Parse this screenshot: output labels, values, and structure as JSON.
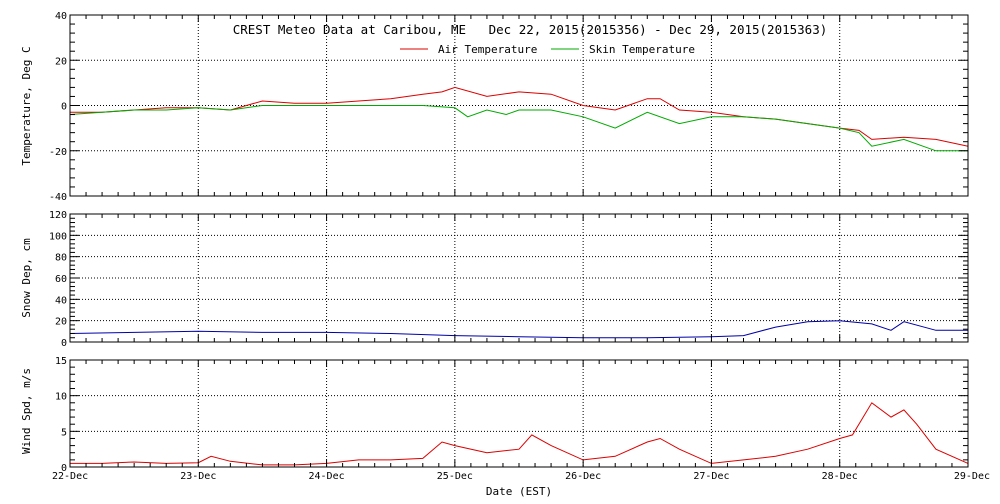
{
  "chart_data": [
    {
      "type": "line",
      "title": "CREST Meteo Data at Caribou, ME   Dec 22, 2015(2015356) - Dec 29, 2015(2015363)",
      "xlabel": "",
      "ylabel": "Temperature, Deg C",
      "ylim": [
        -40,
        40
      ],
      "yticks": [
        -40,
        -20,
        0,
        20,
        40
      ],
      "xlim": [
        0,
        7
      ],
      "grid": true,
      "legend": "top-center",
      "series": [
        {
          "name": "Air Temperature",
          "color": "#dd0000",
          "x": [
            0,
            0.25,
            0.5,
            0.75,
            1.0,
            1.25,
            1.5,
            1.75,
            2.0,
            2.25,
            2.5,
            2.75,
            2.9,
            3.0,
            3.25,
            3.5,
            3.75,
            4.0,
            4.25,
            4.5,
            4.6,
            4.75,
            5.0,
            5.25,
            5.5,
            5.75,
            6.0,
            6.15,
            6.25,
            6.5,
            6.75,
            7.0
          ],
          "y": [
            -3,
            -3,
            -2,
            -1,
            -1,
            -2,
            2,
            1,
            1,
            2,
            3,
            5,
            6,
            8,
            4,
            6,
            5,
            0,
            -2,
            3,
            3,
            -2,
            -3,
            -5,
            -6,
            -8,
            -10,
            -11,
            -15,
            -14,
            -15,
            -18
          ]
        },
        {
          "name": "Skin Temperature",
          "color": "#00aa00",
          "x": [
            0,
            0.25,
            0.5,
            0.75,
            1.0,
            1.25,
            1.5,
            1.75,
            2.0,
            2.25,
            2.5,
            2.75,
            3.0,
            3.1,
            3.25,
            3.4,
            3.5,
            3.75,
            4.0,
            4.25,
            4.5,
            4.75,
            5.0,
            5.25,
            5.5,
            5.75,
            6.0,
            6.15,
            6.25,
            6.5,
            6.75,
            7.0
          ],
          "y": [
            -4,
            -3,
            -2,
            -2,
            -1,
            -2,
            0,
            0,
            0,
            0,
            0,
            0,
            -1,
            -5,
            -2,
            -4,
            -2,
            -2,
            -5,
            -10,
            -3,
            -8,
            -5,
            -5,
            -6,
            -8,
            -10,
            -12,
            -18,
            -15,
            -20,
            -20
          ]
        }
      ]
    },
    {
      "type": "line",
      "title": "",
      "xlabel": "",
      "ylabel": "Snow Dep, cm",
      "ylim": [
        0,
        120
      ],
      "yticks": [
        0,
        20,
        40,
        60,
        80,
        100,
        120
      ],
      "xlim": [
        0,
        7
      ],
      "grid": true,
      "series": [
        {
          "name": "",
          "color": "#0000aa",
          "x": [
            0,
            0.5,
            1.0,
            1.5,
            2.0,
            2.5,
            3.0,
            3.5,
            4.0,
            4.5,
            5.0,
            5.25,
            5.5,
            5.75,
            6.0,
            6.25,
            6.4,
            6.5,
            6.75,
            7.0
          ],
          "y": [
            8,
            9,
            10,
            9,
            9,
            8,
            6,
            5,
            4,
            4,
            5,
            6,
            14,
            19,
            20,
            17,
            11,
            19,
            11,
            11
          ]
        }
      ]
    },
    {
      "type": "line",
      "title": "",
      "xlabel": "Date (EST)",
      "ylabel": "Wind Spd, m/s",
      "ylim": [
        0,
        15
      ],
      "yticks": [
        0,
        5,
        10,
        15
      ],
      "xlim": [
        0,
        7
      ],
      "xtick_labels": [
        "22-Dec",
        "23-Dec",
        "24-Dec",
        "25-Dec",
        "26-Dec",
        "27-Dec",
        "28-Dec",
        "29-Dec"
      ],
      "grid": true,
      "series": [
        {
          "name": "",
          "color": "#dd0000",
          "x": [
            0,
            0.25,
            0.5,
            0.75,
            1.0,
            1.1,
            1.25,
            1.5,
            1.75,
            2.0,
            2.25,
            2.5,
            2.75,
            2.9,
            3.0,
            3.25,
            3.5,
            3.6,
            3.75,
            4.0,
            4.25,
            4.5,
            4.6,
            4.75,
            5.0,
            5.25,
            5.5,
            5.75,
            6.0,
            6.1,
            6.25,
            6.4,
            6.5,
            6.6,
            6.75,
            7.0
          ],
          "y": [
            0.5,
            0.5,
            0.7,
            0.5,
            0.6,
            1.5,
            0.8,
            0.3,
            0.3,
            0.5,
            1.0,
            1.0,
            1.2,
            3.5,
            3.0,
            2.0,
            2.5,
            4.5,
            3.0,
            1.0,
            1.5,
            3.5,
            4.0,
            2.5,
            0.5,
            1.0,
            1.5,
            2.5,
            4.0,
            4.5,
            9.0,
            7.0,
            8.0,
            6.0,
            2.5,
            0.5
          ]
        }
      ]
    }
  ]
}
